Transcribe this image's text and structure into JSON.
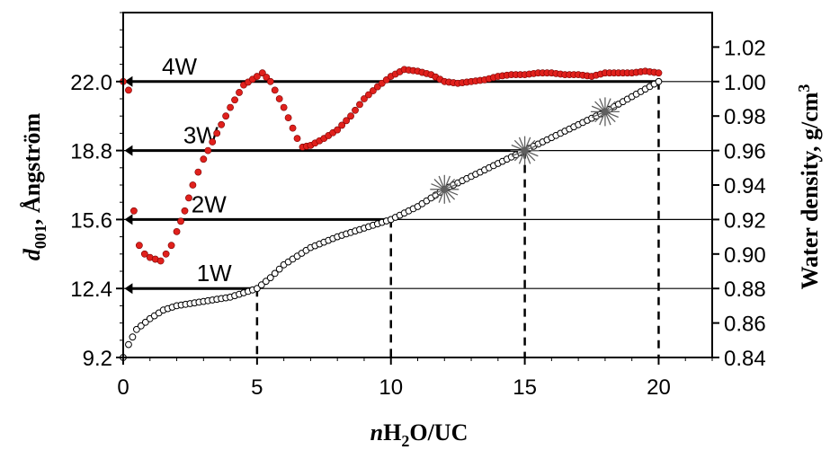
{
  "chart_data": {
    "type": "scatter",
    "xlabel": {
      "italic": "n",
      "main": "H",
      "sub": "2",
      "rest": "O/UC"
    },
    "ylabel_left": {
      "italic": "d",
      "sub": "001",
      "rest": ", Ångström"
    },
    "ylabel_right": {
      "main": "Water density, g/cm",
      "sup": "3"
    },
    "xlim": [
      0,
      22
    ],
    "ylim_left": [
      9.2,
      25.2
    ],
    "ylim_right": [
      0.84,
      1.04
    ],
    "x_ticks": [
      "0",
      "5",
      "10",
      "15",
      "20"
    ],
    "y_left_ticks": [
      "9.2",
      "12.4",
      "15.6",
      "18.8",
      "22.0"
    ],
    "y_right_ticks": [
      "0.84",
      "0.86",
      "0.88",
      "0.90",
      "0.92",
      "0.94",
      "0.96",
      "0.98",
      "1.00",
      "1.02"
    ],
    "grid": false,
    "hydration_states": [
      {
        "label": "1W",
        "x": 5,
        "d001": 12.4
      },
      {
        "label": "2W",
        "x": 10,
        "d001": 15.6
      },
      {
        "label": "3W",
        "x": 15,
        "d001": 18.8
      },
      {
        "label": "4W",
        "x": 20,
        "d001": 22.0
      }
    ],
    "series": [
      {
        "marker": "red-filled-circle",
        "axis": "right",
        "color": "#e0201c",
        "x": [
          0,
          0.2,
          0.4,
          0.6,
          0.8,
          1.0,
          1.2,
          1.4,
          1.6,
          1.8,
          2.0,
          2.3,
          2.6,
          3.0,
          3.5,
          4.0,
          4.5,
          5.0,
          5.2,
          5.5,
          6.0,
          6.5,
          6.7,
          7.0,
          7.5,
          8.0,
          8.5,
          9.0,
          9.5,
          10.0,
          10.5,
          11.0,
          11.5,
          12.0,
          12.5,
          13.0,
          13.5,
          14.0,
          14.5,
          15.0,
          15.5,
          16.0,
          16.5,
          17.0,
          17.5,
          18.0,
          18.5,
          19.0,
          19.5,
          20.0
        ],
        "values": [
          1.0,
          0.995,
          0.925,
          0.905,
          0.9,
          0.898,
          0.897,
          0.896,
          0.9,
          0.905,
          0.913,
          0.925,
          0.94,
          0.955,
          0.97,
          0.985,
          0.998,
          1.003,
          1.005,
          1.0,
          0.985,
          0.967,
          0.962,
          0.963,
          0.967,
          0.972,
          0.98,
          0.99,
          0.997,
          1.003,
          1.007,
          1.006,
          1.004,
          1.0,
          0.999,
          1.0,
          1.001,
          1.003,
          1.004,
          1.004,
          1.005,
          1.005,
          1.004,
          1.004,
          1.003,
          1.005,
          1.005,
          1.005,
          1.006,
          1.005
        ]
      },
      {
        "marker": "open-circle",
        "axis": "left",
        "color": "#000000",
        "x": [
          0,
          0.2,
          0.5,
          1.0,
          1.5,
          2.0,
          3.0,
          4.0,
          5.0,
          5.5,
          6.0,
          7.0,
          8.0,
          9.0,
          10.0,
          11.0,
          12.0,
          13.0,
          14.0,
          15.0,
          16.0,
          17.0,
          18.0,
          19.0,
          20.0
        ],
        "values": [
          9.2,
          9.8,
          10.5,
          11.0,
          11.4,
          11.6,
          11.8,
          12.0,
          12.4,
          12.9,
          13.5,
          14.3,
          14.8,
          15.2,
          15.6,
          16.2,
          17.0,
          17.6,
          18.2,
          18.8,
          19.4,
          20.0,
          20.6,
          21.3,
          22.0
        ]
      },
      {
        "marker": "star-cross",
        "axis": "left",
        "color": "#606060",
        "x": [
          12,
          15,
          18
        ],
        "values": [
          17.0,
          18.8,
          20.6
        ]
      }
    ]
  }
}
